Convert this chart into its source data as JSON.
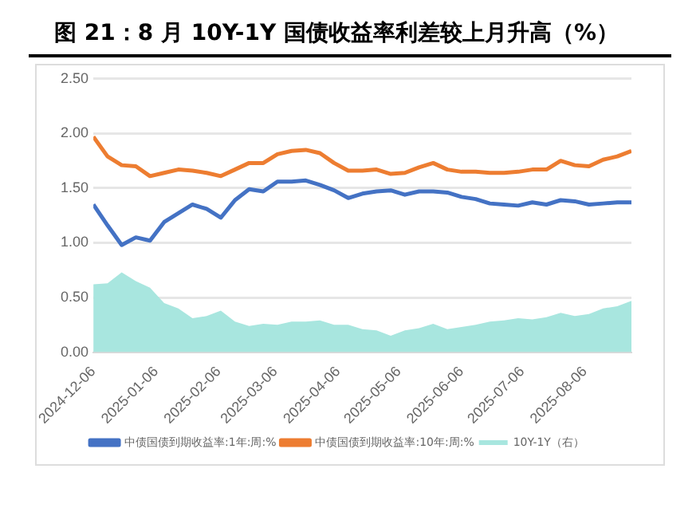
{
  "chart_data": {
    "type": "line",
    "title": "图 21：8 月 10Y-1Y 国债收益率利差较上月升高（%）",
    "x": [
      "2024-12-06",
      "2024-12-13",
      "2024-12-20",
      "2024-12-27",
      "2025-01-03",
      "2025-01-10",
      "2025-01-17",
      "2025-01-24",
      "2025-01-31",
      "2025-02-07",
      "2025-02-14",
      "2025-02-21",
      "2025-02-28",
      "2025-03-07",
      "2025-03-14",
      "2025-03-21",
      "2025-03-28",
      "2025-04-04",
      "2025-04-11",
      "2025-04-18",
      "2025-04-25",
      "2025-05-02",
      "2025-05-09",
      "2025-05-16",
      "2025-05-23",
      "2025-05-30",
      "2025-06-06",
      "2025-06-13",
      "2025-06-20",
      "2025-06-27",
      "2025-07-04",
      "2025-07-11",
      "2025-07-18",
      "2025-07-25",
      "2025-08-01",
      "2025-08-08",
      "2025-08-15",
      "2025-08-22",
      "2025-08-29"
    ],
    "series": [
      {
        "name": "10Y-1Y（右）",
        "type": "area",
        "color": "#a8e6df",
        "values": [
          0.62,
          0.63,
          0.73,
          0.65,
          0.59,
          0.45,
          0.4,
          0.31,
          0.33,
          0.38,
          0.28,
          0.24,
          0.26,
          0.25,
          0.28,
          0.28,
          0.29,
          0.25,
          0.25,
          0.21,
          0.2,
          0.15,
          0.2,
          0.22,
          0.26,
          0.21,
          0.23,
          0.25,
          0.28,
          0.29,
          0.31,
          0.3,
          0.32,
          0.36,
          0.33,
          0.35,
          0.4,
          0.42,
          0.47
        ]
      },
      {
        "name": "中债国债到期收益率:1年:周:%",
        "type": "line",
        "color": "#4472c4",
        "values": [
          1.35,
          1.16,
          0.98,
          1.05,
          1.02,
          1.19,
          1.27,
          1.35,
          1.31,
          1.23,
          1.39,
          1.49,
          1.47,
          1.56,
          1.56,
          1.57,
          1.53,
          1.48,
          1.41,
          1.45,
          1.47,
          1.48,
          1.44,
          1.47,
          1.47,
          1.46,
          1.42,
          1.4,
          1.36,
          1.35,
          1.34,
          1.37,
          1.35,
          1.39,
          1.38,
          1.35,
          1.36,
          1.37,
          1.37
        ]
      },
      {
        "name": "中债国债到期收益率:10年:周:%",
        "type": "line",
        "color": "#ed7d31",
        "values": [
          1.97,
          1.79,
          1.71,
          1.7,
          1.61,
          1.64,
          1.67,
          1.66,
          1.64,
          1.61,
          1.67,
          1.73,
          1.73,
          1.81,
          1.84,
          1.85,
          1.82,
          1.73,
          1.66,
          1.66,
          1.67,
          1.63,
          1.64,
          1.69,
          1.73,
          1.67,
          1.65,
          1.65,
          1.64,
          1.64,
          1.65,
          1.67,
          1.67,
          1.75,
          1.71,
          1.7,
          1.76,
          1.79,
          1.84
        ]
      }
    ],
    "xlim": [
      "2024-12-06",
      "2025-08-29"
    ],
    "xticks": [
      "2024-12-06",
      "2025-01-06",
      "2025-02-06",
      "2025-03-06",
      "2025-04-06",
      "2025-05-06",
      "2025-06-06",
      "2025-07-06",
      "2025-08-06"
    ],
    "ylim": [
      0,
      2.5
    ],
    "yticks": [
      {
        "value": 0,
        "label": "0.00"
      },
      {
        "value": 0.5,
        "label": "0.50"
      },
      {
        "value": 1,
        "label": "1.00"
      },
      {
        "value": 1.5,
        "label": "1.50"
      },
      {
        "value": 2,
        "label": "2.00"
      },
      {
        "value": 2.5,
        "label": "2.50"
      }
    ],
    "grid": "y",
    "legend": "bottom",
    "marker": "none",
    "line_style": "solid"
  }
}
